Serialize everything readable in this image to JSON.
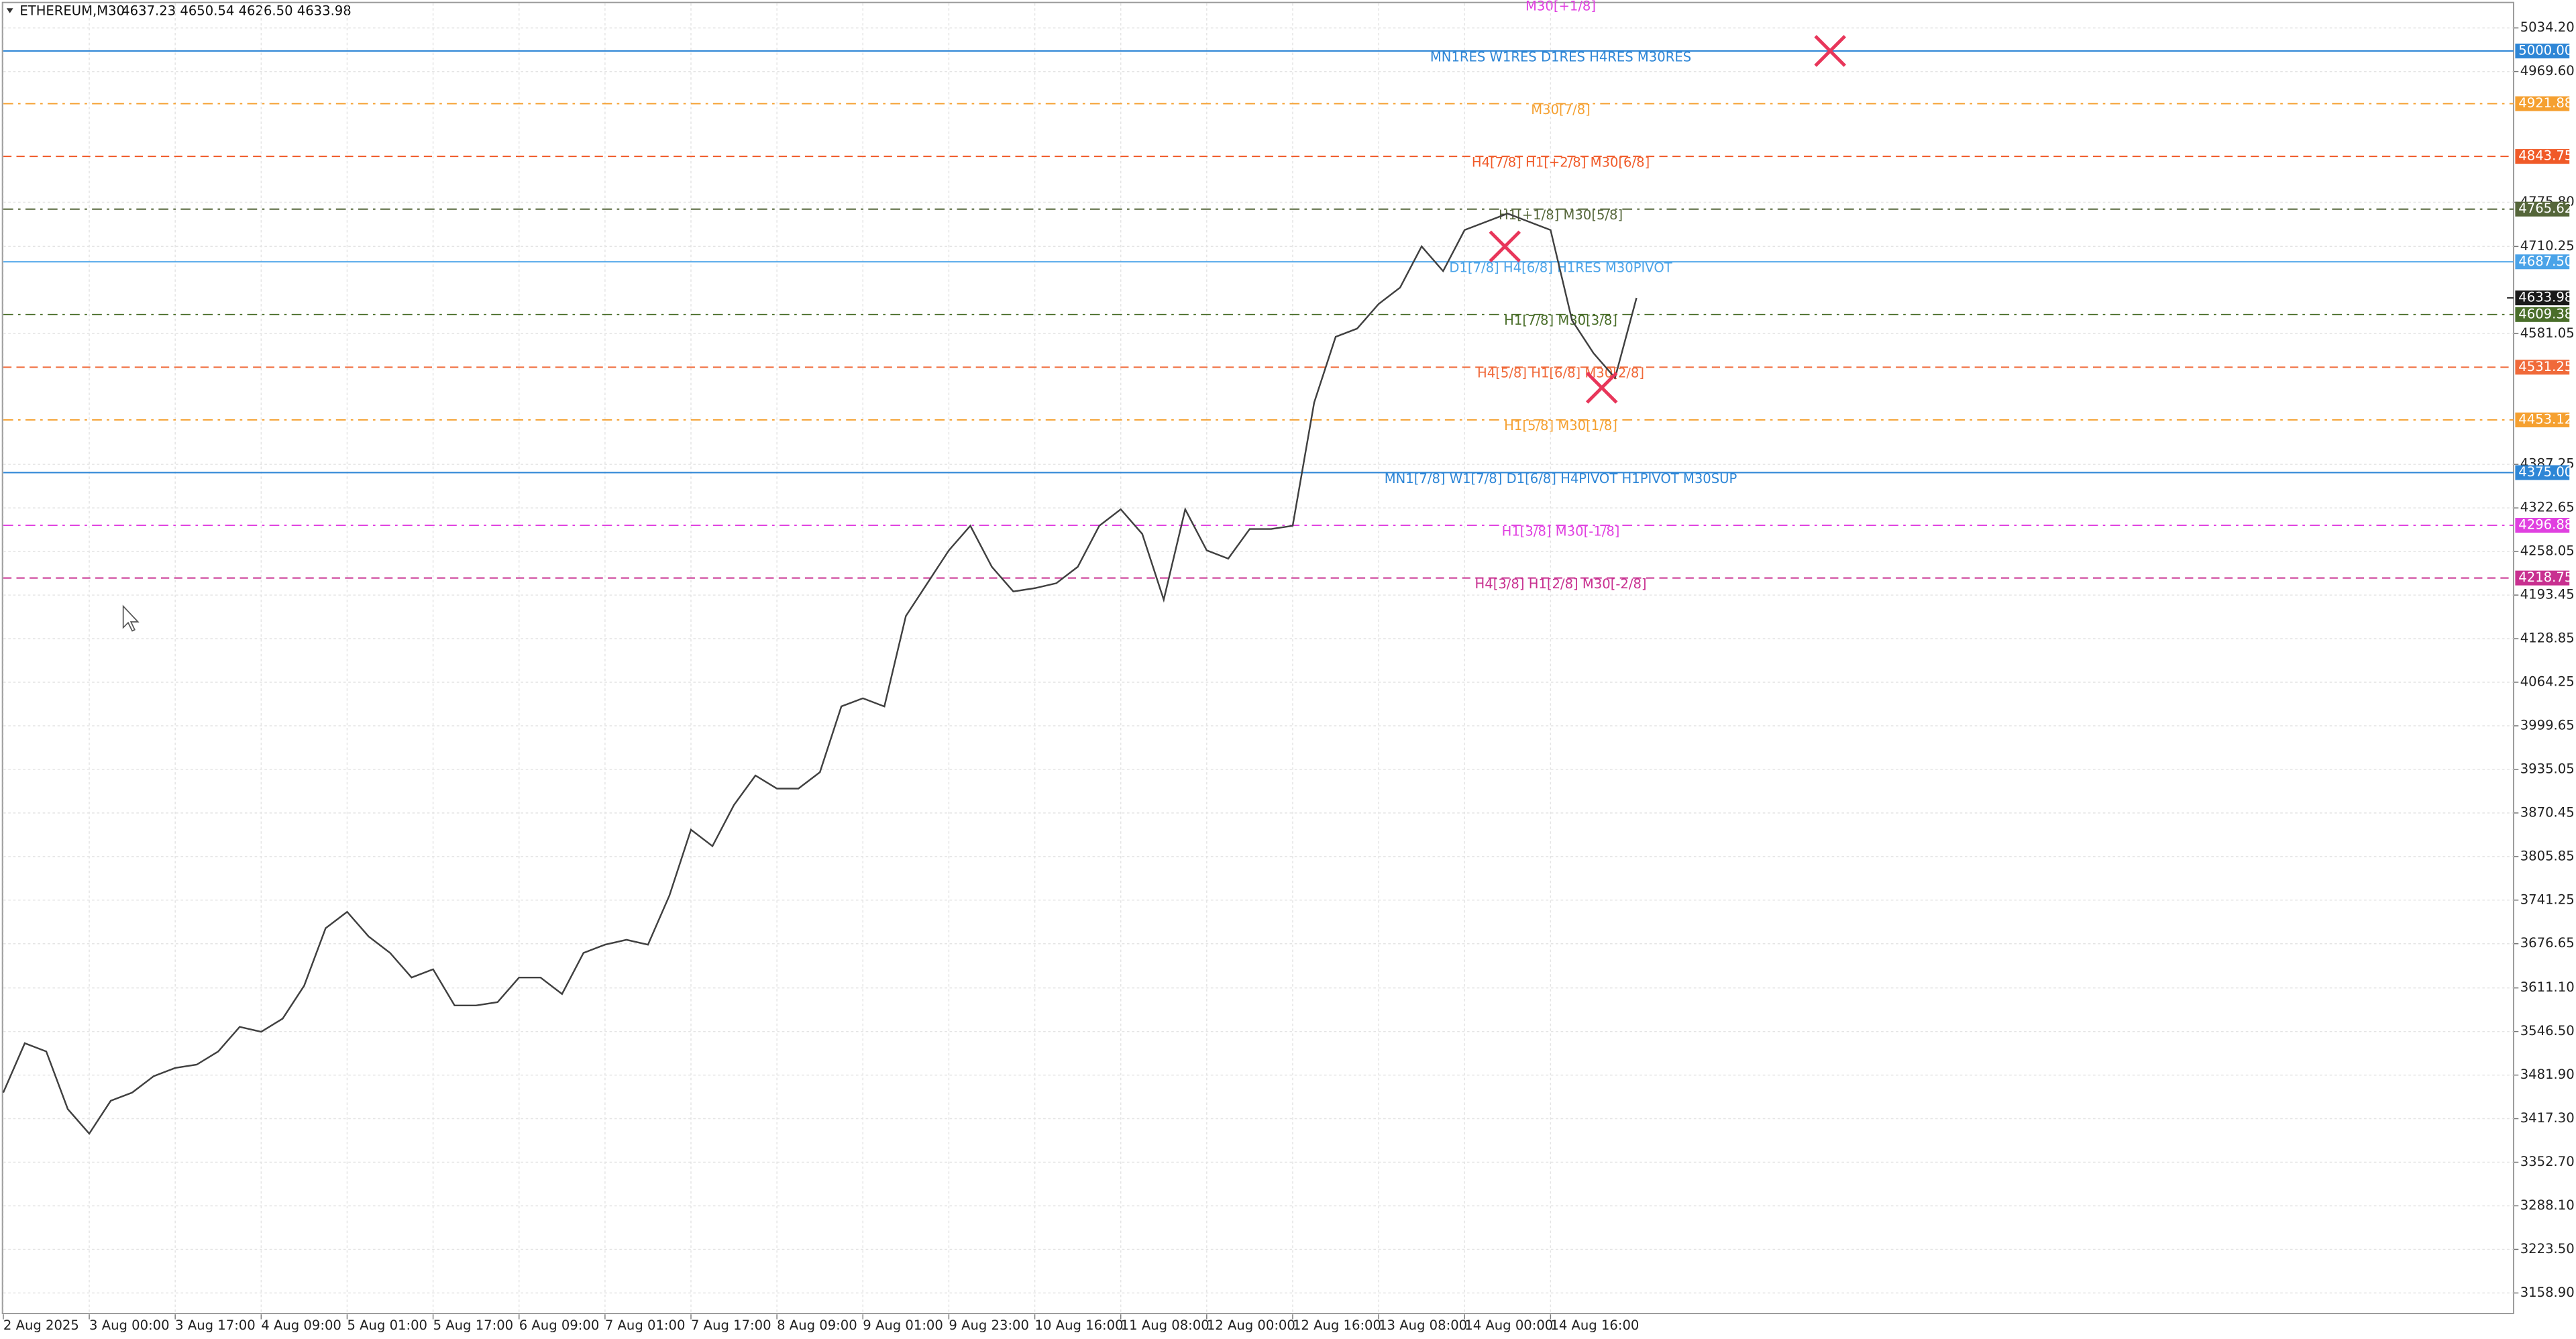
{
  "chart_data": {
    "type": "line",
    "title": "ETHEREUM,M30",
    "ohlc_text": "4637.23 4650.54 4626.50 4633.98",
    "top_annotation": "M30[+1/8]",
    "x": [
      0,
      8,
      16,
      24,
      32,
      40,
      48,
      56,
      64,
      72,
      80,
      88,
      96,
      104,
      112,
      120,
      128,
      136,
      144,
      152,
      160,
      168,
      176,
      184,
      192,
      200,
      208,
      216,
      224,
      232,
      240,
      248,
      256,
      264,
      272,
      280,
      288,
      296,
      304,
      312,
      320,
      328,
      336,
      344,
      352,
      360,
      368,
      376,
      384,
      392,
      400,
      408,
      416,
      424,
      432,
      440,
      448,
      456,
      464,
      472,
      480,
      488,
      496,
      504,
      512,
      520,
      528,
      536,
      544,
      552,
      560,
      568,
      576,
      584,
      592,
      600,
      608
    ],
    "series": [
      {
        "color": "#404040",
        "values": [
          3456.0,
          3529.1,
          3516.9,
          3431.6,
          3395.1,
          3443.8,
          3456.0,
          3480.3,
          3492.5,
          3497.4,
          3516.9,
          3553.4,
          3546.1,
          3565.6,
          3614.3,
          3699.6,
          3723.9,
          3687.4,
          3663.0,
          3626.5,
          3638.7,
          3585.1,
          3585.1,
          3590.0,
          3626.5,
          3626.5,
          3602.1,
          3663.0,
          3675.2,
          3682.5,
          3675.2,
          3748.3,
          3845.7,
          3821.3,
          3882.2,
          3926.0,
          3906.6,
          3906.6,
          3930.9,
          4028.5,
          4040.5,
          4028.3,
          4162.3,
          4211.0,
          4259.7,
          4296.2,
          4235.4,
          4198.8,
          4203.7,
          4211.0,
          4235.4,
          4296.2,
          4320.6,
          4284.1,
          4186.6,
          4320.6,
          4259.7,
          4247.5,
          4291.4,
          4291.4,
          4296.2,
          4478.9,
          4576.3,
          4588.5,
          4625.0,
          4649.4,
          4710.3,
          4673.7,
          4734.6,
          4746.8,
          4759.0,
          4746.8,
          4734.6,
          4600.7,
          4552.0,
          4515.4,
          4633.98
        ]
      }
    ],
    "last_price": 4633.98,
    "xlim": [
      0,
      934.5
    ],
    "xticks": [
      {
        "value": 0,
        "label": "2 Aug 2025"
      },
      {
        "value": 32,
        "label": "3 Aug 00:00"
      },
      {
        "value": 64,
        "label": "3 Aug 17:00"
      },
      {
        "value": 96,
        "label": "4 Aug 09:00"
      },
      {
        "value": 128,
        "label": "5 Aug 01:00"
      },
      {
        "value": 160,
        "label": "5 Aug 17:00"
      },
      {
        "value": 192,
        "label": "6 Aug 09:00"
      },
      {
        "value": 224,
        "label": "7 Aug 01:00"
      },
      {
        "value": 256,
        "label": "7 Aug 17:00"
      },
      {
        "value": 288,
        "label": "8 Aug 09:00"
      },
      {
        "value": 320,
        "label": "9 Aug 01:00"
      },
      {
        "value": 352,
        "label": "9 Aug 23:00"
      },
      {
        "value": 384,
        "label": "10 Aug 16:00"
      },
      {
        "value": 416,
        "label": "11 Aug 08:00"
      },
      {
        "value": 448,
        "label": "12 Aug 00:00"
      },
      {
        "value": 480,
        "label": "12 Aug 16:00"
      },
      {
        "value": 512,
        "label": "13 Aug 08:00"
      },
      {
        "value": 544,
        "label": "14 Aug 00:00"
      },
      {
        "value": 576,
        "label": "14 Aug 16:00"
      }
    ],
    "ylim": [
      3127.2,
      5075.6
    ],
    "yticks": [
      {
        "value": 5034.2,
        "label": "5034.20"
      },
      {
        "value": 4969.6,
        "label": "4969.60"
      },
      {
        "value": 4775.8,
        "label": "4775.80"
      },
      4710.25,
      4581.05,
      4387.25,
      4322.65,
      4258.05,
      4193.45,
      4128.85,
      4064.25,
      3999.65,
      3935.05,
      3870.45,
      3805.85,
      3741.25,
      3676.65,
      {
        "value": 3611.1,
        "label": "3611.10"
      },
      {
        "value": 3546.5,
        "label": "3546.50"
      },
      {
        "value": 3481.9,
        "label": "3481.90"
      },
      {
        "value": 3417.3,
        "label": "3417.30"
      },
      {
        "value": 3352.7,
        "label": "3352.70"
      },
      {
        "value": 3288.1,
        "label": "3288.10"
      },
      {
        "value": 3223.5,
        "label": "3223.50"
      },
      {
        "value": 3158.9,
        "label": "3158.90"
      }
    ],
    "grid": true,
    "levels": [
      {
        "value": 5000,
        "label": "5000.00",
        "text": "MN1RES W1RES D1RES H4RES M30RES",
        "color": "#2e86d6",
        "dash": "solid"
      },
      {
        "value": 4921.88,
        "label": "4921.88",
        "text": "M30[7/8]",
        "color": "#f5a030",
        "dash": "dashdot"
      },
      {
        "value": 4843.75,
        "label": "4843.75",
        "text": "H4[7/8] H1[+2/8] M30[6/8]",
        "color": "#f05a28",
        "dash": "dashed"
      },
      {
        "value": 4765.62,
        "label": "4765.62",
        "text": "H1[+1/8] M30[5/8]",
        "color": "#55663a",
        "dash": "dashdot"
      },
      {
        "value": 4687.5,
        "label": "4687.50",
        "text": "D1[7/8] H4[6/8] H1RES M30PIVOT",
        "color": "#4aa3e8",
        "dash": "solid"
      },
      {
        "value": 4609.38,
        "label": "4609.38",
        "text": "H1[7/8] M30[3/8]",
        "color": "#4a6e2a",
        "dash": "dashdot"
      },
      {
        "value": 4531.25,
        "label": "4531.25",
        "text": "H4[5/8] H1[6/8] M30[2/8]",
        "color": "#f06a3a",
        "dash": "dashed"
      },
      {
        "value": 4453.12,
        "label": "4453.12",
        "text": "H1[5/8] M30[1/8]",
        "color": "#f5a030",
        "dash": "dashdot"
      },
      {
        "value": 4375,
        "label": "4375.00",
        "text": "MN1[7/8] W1[7/8] D1[6/8] H4PIVOT H1PIVOT M30SUP",
        "color": "#2e86d6",
        "dash": "solid"
      },
      {
        "value": 4296.88,
        "label": "4296.88",
        "text": "H1[3/8] M30[-1/8]",
        "color": "#e040e0",
        "dash": "dashdot"
      },
      {
        "value": 4218.75,
        "label": "4218.75",
        "text": "H4[3/8] H1[2/8] M30[-2/8]",
        "color": "#c83090",
        "dash": "dashed"
      }
    ]
  }
}
